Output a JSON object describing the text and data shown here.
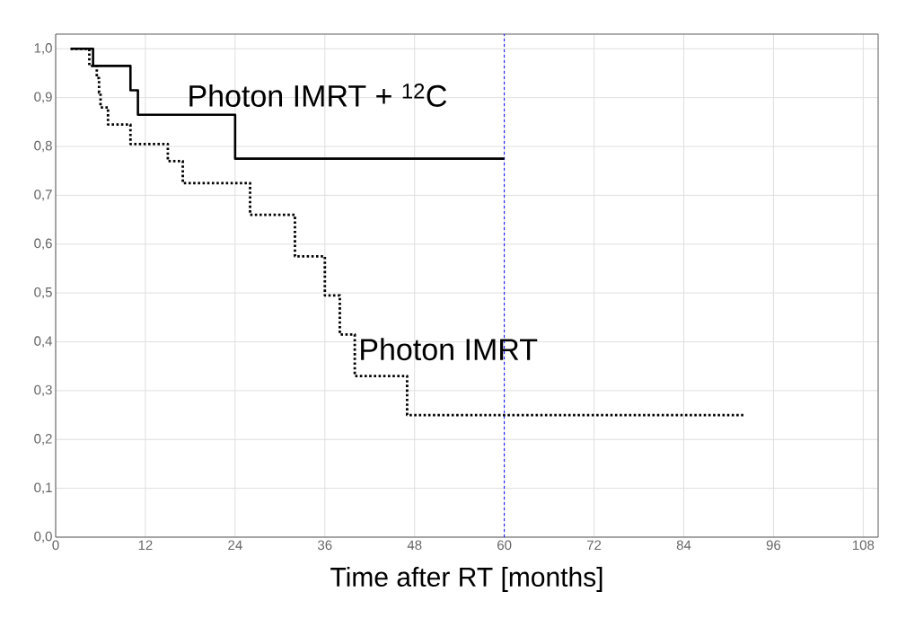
{
  "chart_data": {
    "type": "step",
    "xlabel": "Time after RT [months]",
    "series": [
      {
        "name": "Photon IMRT + $^{12}$C",
        "color": "#000000",
        "line_style": "solid",
        "x": [
          2,
          5,
          10,
          11,
          24,
          60
        ],
        "values": [
          1.0,
          0.965,
          0.915,
          0.865,
          0.775,
          0.775
        ]
      },
      {
        "name": "Photon IMRT",
        "color": "#000000",
        "line_style": "dotted",
        "x": [
          2,
          4.5,
          5.5,
          5.8,
          6,
          7,
          10,
          15,
          17,
          26,
          32,
          36,
          38,
          40,
          47,
          92
        ],
        "values": [
          1.0,
          0.965,
          0.94,
          0.91,
          0.88,
          0.845,
          0.805,
          0.77,
          0.725,
          0.66,
          0.575,
          0.495,
          0.415,
          0.33,
          0.25,
          0.25
        ]
      }
    ],
    "xlim": [
      0,
      110
    ],
    "ylim": [
      0,
      1.03
    ],
    "xticks": [
      0,
      12,
      24,
      36,
      48,
      60,
      72,
      84,
      96,
      108
    ],
    "yticks": [
      {
        "value": 0,
        "label": "0,0"
      },
      {
        "value": 0.1,
        "label": "0,1"
      },
      {
        "value": 0.2,
        "label": "0,2"
      },
      {
        "value": 0.3,
        "label": "0,3"
      },
      {
        "value": 0.4,
        "label": "0,4"
      },
      {
        "value": 0.5,
        "label": "0,5"
      },
      {
        "value": 0.6,
        "label": "0,6"
      },
      {
        "value": 0.7,
        "label": "0,7"
      },
      {
        "value": 0.8,
        "label": "0,8"
      },
      {
        "value": 0.9,
        "label": "0,9"
      },
      {
        "value": 1.0,
        "label": "1,0"
      }
    ],
    "ref_lines": [
      {
        "axis": "x",
        "value": 60,
        "color": "#0000ff",
        "line_style": "dashed"
      }
    ],
    "grid": true
  }
}
